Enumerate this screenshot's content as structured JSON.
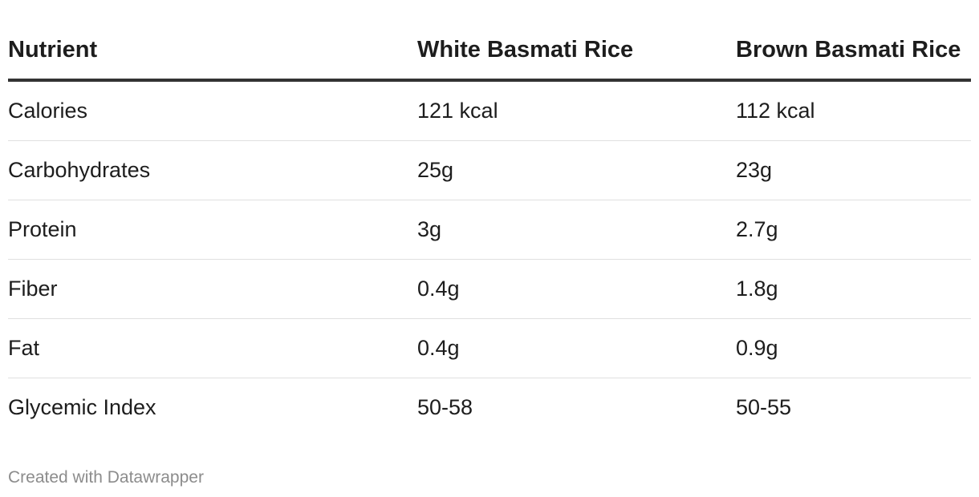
{
  "chart_data": {
    "type": "table",
    "columns": [
      "Nutrient",
      "White Basmati Rice",
      "Brown Basmati Rice"
    ],
    "rows": [
      [
        "Calories",
        "121 kcal",
        "112 kcal"
      ],
      [
        "Carbohydrates",
        "25g",
        "23g"
      ],
      [
        "Protein",
        "3g",
        "2.7g"
      ],
      [
        "Fiber",
        "0.4g",
        "1.8g"
      ],
      [
        "Fat",
        "0.4g",
        "0.9g"
      ],
      [
        "Glycemic Index",
        "50-58",
        "50-55"
      ]
    ]
  },
  "footer": {
    "credit": "Created with Datawrapper"
  },
  "colors": {
    "text": "#1d1d1d",
    "header_rule": "#333333",
    "row_divider": "#e0e0e0",
    "footer_text": "#8c8c8c"
  }
}
